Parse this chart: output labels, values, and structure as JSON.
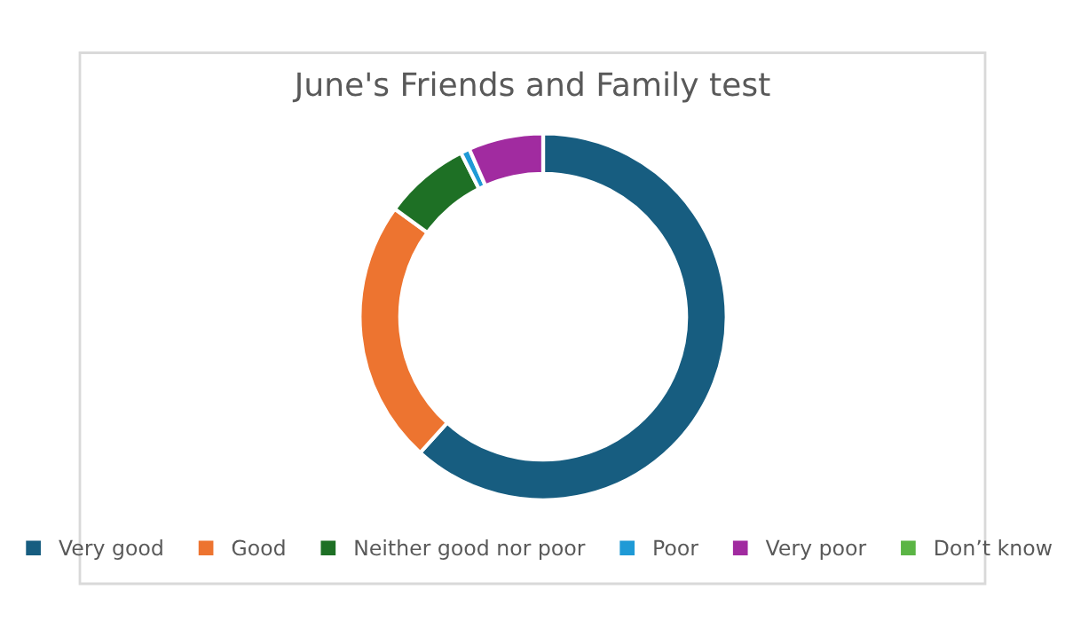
{
  "chart_data": {
    "type": "donut",
    "title": "June's Friends and Family test",
    "categories": [
      "Very good",
      "Good",
      "Neither good nor poor",
      "Poor",
      "Very poor",
      "Don’t know"
    ],
    "values": [
      61.7,
      23.3,
      7.6,
      0.8,
      6.6,
      0
    ],
    "colors": [
      "#175d80",
      "#ed7430",
      "#1e7025",
      "#1f9ad6",
      "#a12ba0",
      "#5bb545"
    ],
    "legend": "bottom"
  }
}
